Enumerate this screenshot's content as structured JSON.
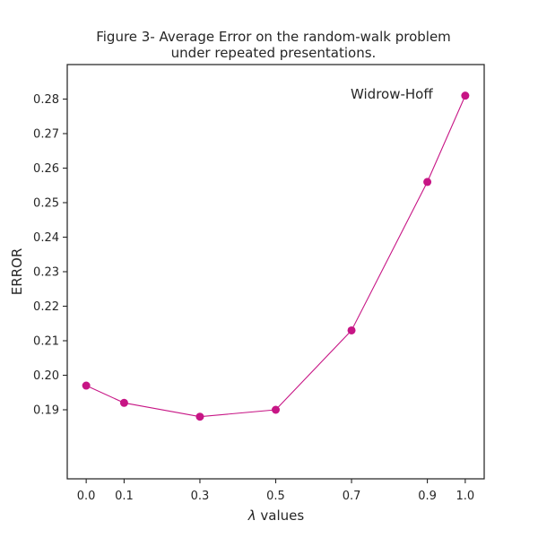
{
  "chart_data": {
    "type": "line",
    "title_line1": "Figure 3- Average Error on the random-walk problem",
    "title_line2": "under repeated presentations.",
    "xlabel_symbol": "λ",
    "xlabel_text": " values",
    "ylabel": "ERROR",
    "annotation": "Widrow-Hoff",
    "x": [
      0.0,
      0.1,
      0.3,
      0.5,
      0.7,
      0.9,
      1.0
    ],
    "x_tick_labels": [
      "0.0",
      "0.1",
      "0.3",
      "0.5",
      "0.7",
      "0.9",
      "1.0"
    ],
    "y": [
      0.197,
      0.192,
      0.188,
      0.19,
      0.213,
      0.256,
      0.281
    ],
    "y_ticks": [
      0.19,
      0.2,
      0.21,
      0.22,
      0.23,
      0.24,
      0.25,
      0.26,
      0.27,
      0.28
    ],
    "y_tick_labels": [
      "0.19",
      "0.20",
      "0.21",
      "0.22",
      "0.23",
      "0.24",
      "0.25",
      "0.26",
      "0.27",
      "0.28"
    ],
    "xlim": [
      -0.05,
      1.05
    ],
    "ylim": [
      0.17,
      0.29
    ],
    "grid": false,
    "line_color": "#c71585",
    "marker_color": "#c71585",
    "axis_color": "#262626"
  }
}
